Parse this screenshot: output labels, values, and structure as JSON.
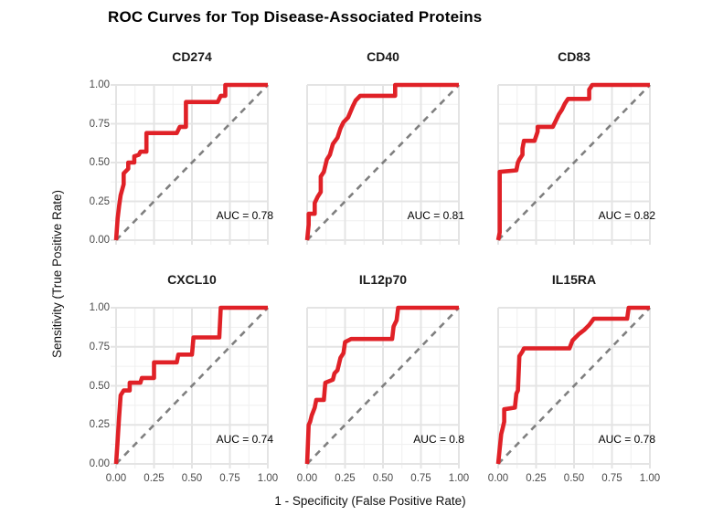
{
  "chart_data": {
    "type": "line",
    "title": "ROC Curves for Top Disease-Associated Proteins",
    "xlabel": "1 - Specificity (False Positive Rate)",
    "ylabel": "Sensitivity (True Positive Rate)",
    "xlim": [
      0,
      1
    ],
    "ylim": [
      0,
      1
    ],
    "x_tick_labels": [
      "0.00",
      "0.25",
      "0.50",
      "0.75",
      "1.00"
    ],
    "y_tick_labels": [
      "0.00",
      "0.25",
      "0.50",
      "0.75",
      "1.00"
    ],
    "grid": true,
    "legend": "none",
    "reference_line": "dashed diagonal chance line (y = x)",
    "facet_layout": "2 rows x 3 columns",
    "colors": {
      "roc_curve": "#E02127",
      "diagonal": "#7F7F7F",
      "grid_major": "#E4E4E4",
      "grid_minor": "#EFEFEF",
      "tick_text": "#4a4a4a",
      "background": "#ffffff"
    },
    "panels": [
      {
        "name": "CD274",
        "auc": 0.78,
        "auc_label": "AUC = 0.78",
        "roc": [
          [
            0,
            0
          ],
          [
            0.01,
            0.14
          ],
          [
            0.02,
            0.22
          ],
          [
            0.03,
            0.29
          ],
          [
            0.05,
            0.36
          ],
          [
            0.05,
            0.43
          ],
          [
            0.08,
            0.46
          ],
          [
            0.08,
            0.5
          ],
          [
            0.12,
            0.5
          ],
          [
            0.12,
            0.54
          ],
          [
            0.15,
            0.55
          ],
          [
            0.16,
            0.57
          ],
          [
            0.2,
            0.57
          ],
          [
            0.2,
            0.69
          ],
          [
            0.4,
            0.69
          ],
          [
            0.42,
            0.73
          ],
          [
            0.46,
            0.73
          ],
          [
            0.46,
            0.89
          ],
          [
            0.67,
            0.89
          ],
          [
            0.69,
            0.93
          ],
          [
            0.72,
            0.93
          ],
          [
            0.72,
            1
          ],
          [
            1,
            1
          ]
        ]
      },
      {
        "name": "CD40",
        "auc": 0.81,
        "auc_label": "AUC = 0.81",
        "roc": [
          [
            0,
            0
          ],
          [
            0.01,
            0.1
          ],
          [
            0.01,
            0.17
          ],
          [
            0.05,
            0.17
          ],
          [
            0.05,
            0.24
          ],
          [
            0.07,
            0.28
          ],
          [
            0.09,
            0.31
          ],
          [
            0.09,
            0.41
          ],
          [
            0.11,
            0.44
          ],
          [
            0.13,
            0.52
          ],
          [
            0.15,
            0.55
          ],
          [
            0.17,
            0.62
          ],
          [
            0.2,
            0.66
          ],
          [
            0.22,
            0.72
          ],
          [
            0.24,
            0.76
          ],
          [
            0.27,
            0.79
          ],
          [
            0.3,
            0.86
          ],
          [
            0.32,
            0.9
          ],
          [
            0.35,
            0.93
          ],
          [
            0.58,
            0.93
          ],
          [
            0.58,
            1
          ],
          [
            1,
            1
          ]
        ]
      },
      {
        "name": "CD83",
        "auc": 0.82,
        "auc_label": "AUC = 0.82",
        "roc": [
          [
            0,
            0
          ],
          [
            0.01,
            0.05
          ],
          [
            0.01,
            0.44
          ],
          [
            0.12,
            0.45
          ],
          [
            0.13,
            0.5
          ],
          [
            0.14,
            0.52
          ],
          [
            0.16,
            0.55
          ],
          [
            0.16,
            0.59
          ],
          [
            0.17,
            0.64
          ],
          [
            0.24,
            0.64
          ],
          [
            0.25,
            0.67
          ],
          [
            0.26,
            0.7
          ],
          [
            0.26,
            0.73
          ],
          [
            0.36,
            0.73
          ],
          [
            0.38,
            0.77
          ],
          [
            0.4,
            0.81
          ],
          [
            0.42,
            0.84
          ],
          [
            0.44,
            0.88
          ],
          [
            0.46,
            0.91
          ],
          [
            0.6,
            0.91
          ],
          [
            0.6,
            0.97
          ],
          [
            0.62,
            1
          ],
          [
            1,
            1
          ]
        ]
      },
      {
        "name": "CXCL10",
        "auc": 0.74,
        "auc_label": "AUC = 0.74",
        "roc": [
          [
            0,
            0
          ],
          [
            0.01,
            0.15
          ],
          [
            0.02,
            0.3
          ],
          [
            0.03,
            0.44
          ],
          [
            0.05,
            0.47
          ],
          [
            0.09,
            0.47
          ],
          [
            0.09,
            0.52
          ],
          [
            0.16,
            0.52
          ],
          [
            0.17,
            0.55
          ],
          [
            0.25,
            0.55
          ],
          [
            0.25,
            0.65
          ],
          [
            0.4,
            0.65
          ],
          [
            0.41,
            0.7
          ],
          [
            0.5,
            0.7
          ],
          [
            0.51,
            0.81
          ],
          [
            0.68,
            0.81
          ],
          [
            0.69,
            1
          ],
          [
            1,
            1
          ]
        ]
      },
      {
        "name": "IL12p70",
        "auc": 0.8,
        "auc_label": "AUC = 0.8",
        "roc": [
          [
            0,
            0
          ],
          [
            0.01,
            0.25
          ],
          [
            0.02,
            0.27
          ],
          [
            0.03,
            0.31
          ],
          [
            0.05,
            0.36
          ],
          [
            0.06,
            0.41
          ],
          [
            0.11,
            0.41
          ],
          [
            0.12,
            0.52
          ],
          [
            0.17,
            0.54
          ],
          [
            0.18,
            0.58
          ],
          [
            0.2,
            0.6
          ],
          [
            0.22,
            0.68
          ],
          [
            0.24,
            0.71
          ],
          [
            0.25,
            0.78
          ],
          [
            0.29,
            0.8
          ],
          [
            0.56,
            0.8
          ],
          [
            0.57,
            0.88
          ],
          [
            0.59,
            0.92
          ],
          [
            0.6,
            1
          ],
          [
            1,
            1
          ]
        ]
      },
      {
        "name": "IL15RA",
        "auc": 0.78,
        "auc_label": "AUC = 0.78",
        "roc": [
          [
            0,
            0
          ],
          [
            0.02,
            0.19
          ],
          [
            0.03,
            0.23
          ],
          [
            0.04,
            0.27
          ],
          [
            0.04,
            0.35
          ],
          [
            0.11,
            0.36
          ],
          [
            0.12,
            0.45
          ],
          [
            0.13,
            0.47
          ],
          [
            0.14,
            0.69
          ],
          [
            0.16,
            0.72
          ],
          [
            0.17,
            0.74
          ],
          [
            0.47,
            0.74
          ],
          [
            0.49,
            0.79
          ],
          [
            0.53,
            0.83
          ],
          [
            0.57,
            0.86
          ],
          [
            0.6,
            0.89
          ],
          [
            0.63,
            0.93
          ],
          [
            0.85,
            0.93
          ],
          [
            0.86,
            1
          ],
          [
            1,
            1
          ]
        ]
      }
    ]
  }
}
